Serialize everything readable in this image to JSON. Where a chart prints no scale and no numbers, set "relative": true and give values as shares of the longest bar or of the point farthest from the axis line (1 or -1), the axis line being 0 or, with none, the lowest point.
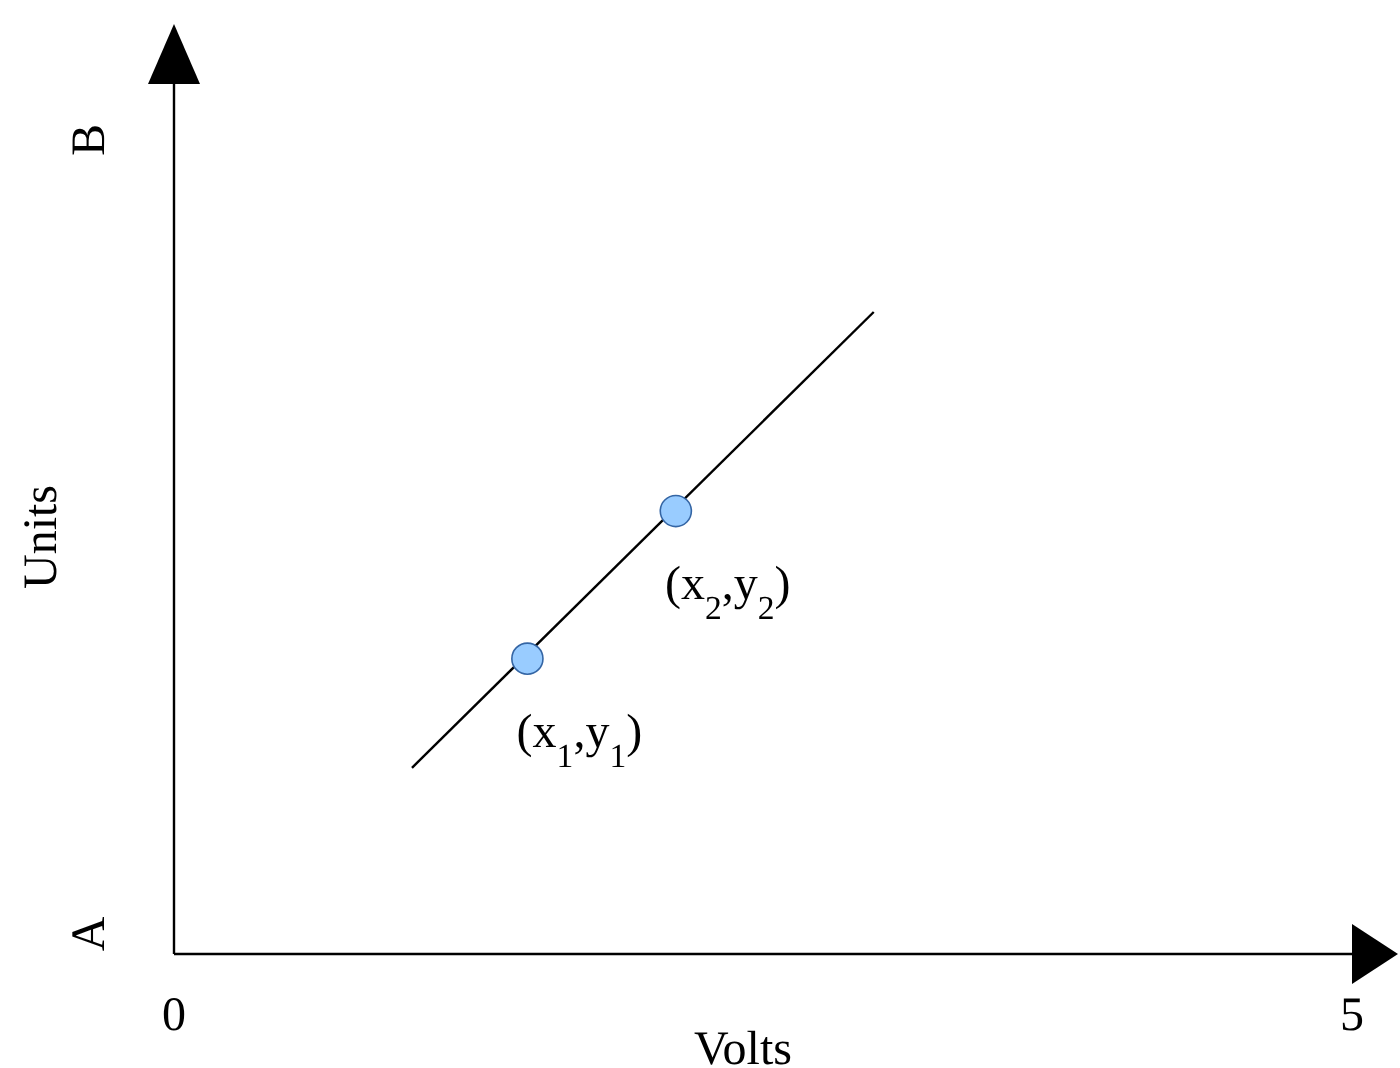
{
  "chart_data": {
    "type": "line",
    "xlabel": "Volts",
    "ylabel": "Units",
    "relative": true,
    "xlim": [
      0,
      5
    ],
    "xticks": [
      0,
      5
    ],
    "grid": false,
    "series": [
      {
        "color": "#000000",
        "marker": "none",
        "x": [
          1.01,
          2.97
        ],
        "values": [
          0.29,
          1
        ]
      },
      {
        "type": "scatter",
        "marker": "circle",
        "color": "#99ccff",
        "x": [
          1.5,
          2.13
        ],
        "values": [
          0.46,
          0.69
        ]
      }
    ],
    "annotations": [
      "A",
      "B",
      {
        "text": "(x$_{1}$,y$_{1}$)",
        "x": 1.5,
        "y": 0.46
      },
      {
        "text": "(x$_{2}$,y$_{2}$)",
        "x": 2.13,
        "y": 0.69
      }
    ]
  }
}
